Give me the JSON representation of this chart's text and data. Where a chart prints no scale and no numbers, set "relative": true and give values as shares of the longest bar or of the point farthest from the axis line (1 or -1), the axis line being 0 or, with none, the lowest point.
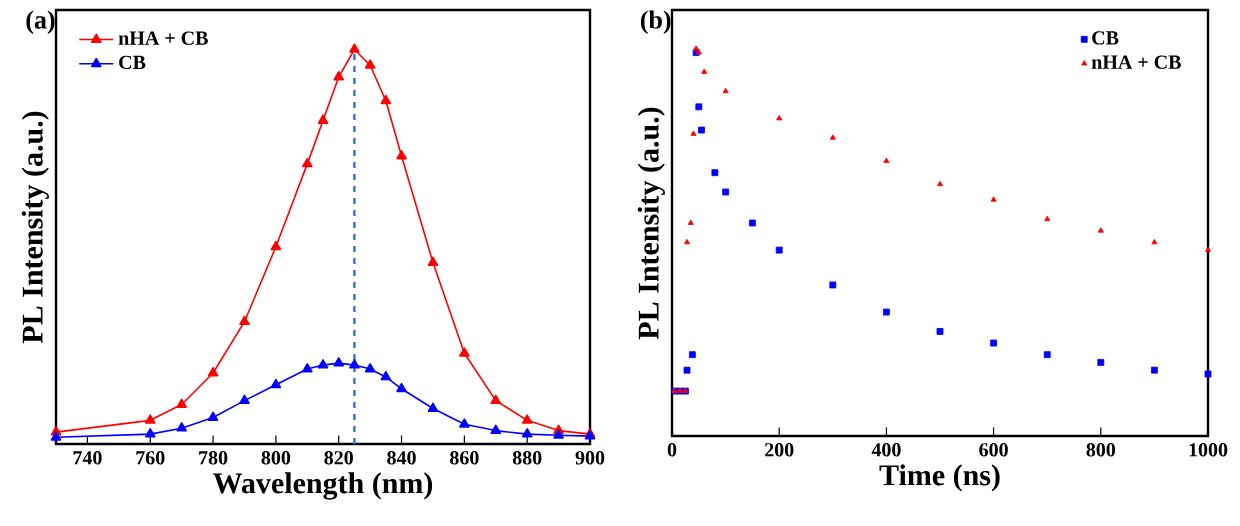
{
  "chart_data": [
    {
      "type": "line",
      "annotations": [
        "(a)"
      ],
      "xlabel": "Wavelength (nm)",
      "ylabel": "PL Intensity (a.u.)",
      "relative": true,
      "tick_labels": "x",
      "legend": "top left",
      "marker": "triangle",
      "line_style": "solid",
      "xlim": [
        730,
        900
      ],
      "xticks": [
        740,
        760,
        780,
        800,
        820,
        840,
        860,
        880,
        900
      ],
      "x": [
        730,
        760,
        770,
        780,
        790,
        800,
        810,
        815,
        820,
        825,
        830,
        835,
        840,
        850,
        860,
        870,
        880,
        890,
        900
      ],
      "series": [
        {
          "name": "nHA + CB",
          "color": "#ff0000",
          "values": [
            0.03,
            0.06,
            0.1,
            0.18,
            0.31,
            0.5,
            0.71,
            0.82,
            0.93,
            1.0,
            0.96,
            0.87,
            0.73,
            0.46,
            0.23,
            0.11,
            0.06,
            0.034,
            0.025
          ]
        },
        {
          "name": "CB",
          "color": "#0000ff",
          "values": [
            0.017,
            0.025,
            0.04,
            0.067,
            0.11,
            0.15,
            0.19,
            0.2,
            0.205,
            0.2,
            0.19,
            0.17,
            0.14,
            0.09,
            0.05,
            0.034,
            0.025,
            0.022,
            0.02
          ]
        }
      ],
      "ref_lines": [
        {
          "axis": "x",
          "value": 825,
          "color": "#3a6fc9",
          "line_style": "dashed"
        }
      ]
    },
    {
      "type": "scatter",
      "annotations": [
        "(b)"
      ],
      "xlabel": "Time (ns)",
      "ylabel": "PL Intensity (a.u.)",
      "relative": true,
      "tick_labels": "x",
      "legend": "top right",
      "xlim": [
        0,
        1000
      ],
      "xticks": [
        0,
        200,
        400,
        600,
        800,
        1000
      ],
      "series": [
        {
          "name": "CB",
          "color": "#0000ff",
          "marker": "square",
          "x": [
            5,
            15,
            25,
            28,
            38,
            45,
            50,
            55,
            80,
            100,
            150,
            200,
            300,
            400,
            500,
            600,
            700,
            800,
            900,
            1000
          ],
          "values": [
            0.116,
            0.116,
            0.116,
            0.17,
            0.21,
            0.99,
            0.85,
            0.79,
            0.68,
            0.63,
            0.55,
            0.48,
            0.39,
            0.32,
            0.27,
            0.24,
            0.21,
            0.19,
            0.17,
            0.16
          ]
        },
        {
          "name": "nHA + CB",
          "color": "#ff0000",
          "marker": "triangle",
          "x": [
            5,
            15,
            25,
            28,
            35,
            40,
            45,
            50,
            60,
            100,
            200,
            300,
            400,
            500,
            600,
            700,
            800,
            900,
            1000
          ],
          "values": [
            0.116,
            0.116,
            0.116,
            0.5,
            0.55,
            0.78,
            1.0,
            0.99,
            0.94,
            0.89,
            0.82,
            0.77,
            0.71,
            0.65,
            0.61,
            0.56,
            0.53,
            0.5,
            0.48
          ]
        }
      ]
    }
  ]
}
